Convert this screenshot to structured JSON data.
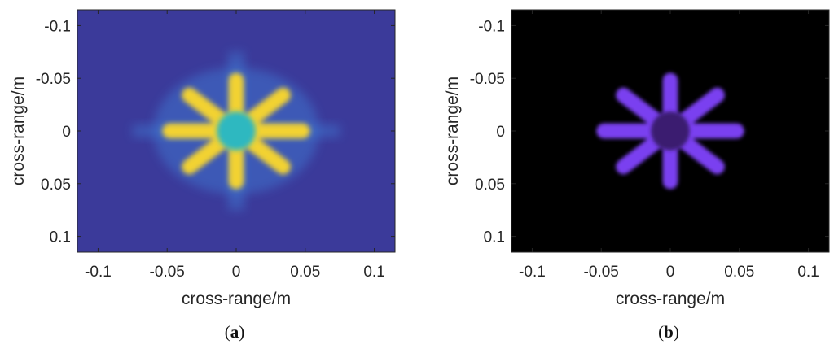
{
  "chart_data": [
    {
      "type": "heatmap",
      "caption_open": "(",
      "caption_letter": "a",
      "caption_close": ")",
      "xlabel": "cross-range/m",
      "ylabel": "cross-range/m",
      "xlim": [
        -0.115,
        0.115
      ],
      "ylim": [
        -0.115,
        0.115
      ],
      "y_reversed": true,
      "xticks": [
        -0.1,
        -0.05,
        0,
        0.05,
        0.1
      ],
      "xtick_labels": [
        "-0.1",
        "-0.05",
        "0",
        "0.05",
        "0.1"
      ],
      "yticks": [
        -0.1,
        -0.05,
        0,
        0.05,
        0.1
      ],
      "ytick_labels": [
        "-0.1",
        "-0.05",
        "0",
        "0.05",
        "0.1"
      ],
      "colormap": "parula",
      "background_color": "#3b3a9a",
      "target": {
        "shape": "eight-spoke star",
        "center": [
          0,
          0
        ],
        "spoke_angles_deg": [
          0,
          45,
          90,
          135,
          180,
          225,
          270,
          315
        ],
        "spoke_inner_radius": 0.012,
        "spoke_outer_radius": 0.048,
        "spoke_width": 0.011,
        "spoke_color": "#f2d232",
        "center_color": "#2fb8c0",
        "sidelobe_color": "#3f7fd8"
      }
    },
    {
      "type": "heatmap",
      "caption_open": "(",
      "caption_letter": "b",
      "caption_close": ")",
      "xlabel": "cross-range/m",
      "ylabel": "cross-range/m",
      "xlim": [
        -0.115,
        0.115
      ],
      "ylim": [
        -0.115,
        0.115
      ],
      "y_reversed": true,
      "xticks": [
        -0.1,
        -0.05,
        0,
        0.05,
        0.1
      ],
      "xtick_labels": [
        "-0.1",
        "-0.05",
        "0",
        "0.05",
        "0.1"
      ],
      "yticks": [
        -0.1,
        -0.05,
        0,
        0.05,
        0.1
      ],
      "ytick_labels": [
        "-0.1",
        "-0.05",
        "0",
        "0.05",
        "0.1"
      ],
      "colormap": "black-purple",
      "background_color": "#000000",
      "target": {
        "shape": "eight-spoke star",
        "center": [
          0,
          0
        ],
        "spoke_angles_deg": [
          0,
          45,
          90,
          135,
          180,
          225,
          270,
          315
        ],
        "spoke_inner_radius": 0.012,
        "spoke_outer_radius": 0.048,
        "spoke_width": 0.011,
        "spoke_color": "#7a3ff0",
        "center_color": "#3a1b70"
      }
    }
  ]
}
